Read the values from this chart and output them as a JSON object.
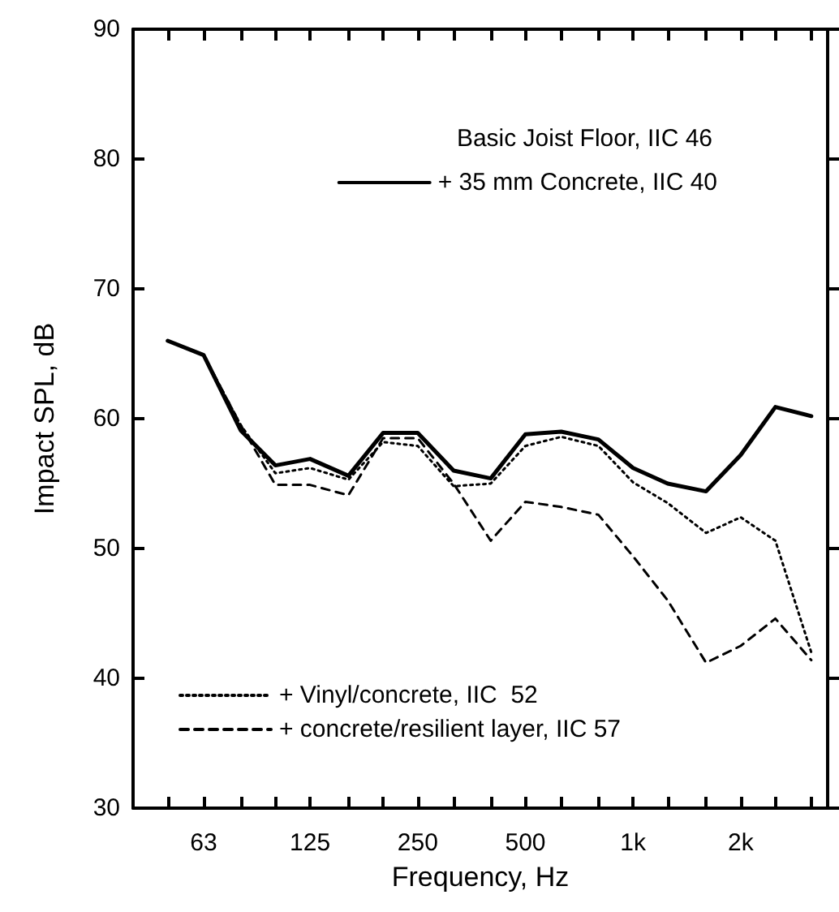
{
  "chart_data": {
    "type": "line",
    "xlabel": "Frequency, Hz",
    "ylabel": "Impact SPL, dB",
    "x": [
      50,
      63,
      80,
      100,
      125,
      160,
      200,
      250,
      315,
      400,
      500,
      630,
      800,
      1000,
      1250,
      1600,
      2000,
      2500,
      3150
    ],
    "series": [
      {
        "name": "+ 35 mm Concrete, IIC 40",
        "color": "#000000",
        "line_style": "solid",
        "values": [
          66,
          64.9,
          59.1,
          56.4,
          56.9,
          55.6,
          58.9,
          58.9,
          56,
          55.4,
          58.8,
          59,
          58.4,
          56.2,
          55,
          54.4,
          57.2,
          60.9,
          60.2
        ]
      },
      {
        "name": "+ Vinyl/concrete, IIC  52",
        "color": "#000000",
        "line_style": "dotted",
        "values": [
          66,
          64.9,
          59.5,
          55.8,
          56.2,
          55.3,
          58.2,
          57.9,
          54.8,
          55,
          57.9,
          58.6,
          57.9,
          55.1,
          53.5,
          51.2,
          52.4,
          50.6,
          42
        ]
      },
      {
        "name": "+ concrete/resilient layer, IIC 57",
        "color": "#000000",
        "line_style": "dashed",
        "values": [
          66,
          64.9,
          59.5,
          54.9,
          54.9,
          54.1,
          58.5,
          58.5,
          55,
          50.6,
          53.6,
          53.2,
          52.6,
          49.4,
          46,
          41.2,
          42.5,
          44.6,
          41.4
        ]
      }
    ],
    "annotations": [
      "Basic Joist Floor, IIC 46"
    ],
    "log": "x",
    "xlim": [
      40,
      3500
    ],
    "xticks": [
      {
        "value": 50,
        "label": null
      },
      63,
      {
        "value": 80,
        "label": null
      },
      {
        "value": 100,
        "label": null
      },
      125,
      {
        "value": 160,
        "label": null
      },
      {
        "value": 200,
        "label": null
      },
      250,
      {
        "value": 315,
        "label": null
      },
      {
        "value": 400,
        "label": null
      },
      500,
      {
        "value": 630,
        "label": null
      },
      {
        "value": 800,
        "label": null
      },
      {
        "value": 1000,
        "label": "1k"
      },
      {
        "value": 1250,
        "label": null
      },
      {
        "value": 1600,
        "label": null
      },
      {
        "value": 2000,
        "label": "2k"
      },
      {
        "value": 2500,
        "label": null
      },
      {
        "value": 3150,
        "label": null
      }
    ],
    "ylim": [
      30,
      90
    ],
    "yticks": [
      30,
      40,
      50,
      60,
      70,
      80,
      90
    ],
    "grid": false,
    "legend": "bottom left",
    "marker": "none"
  }
}
